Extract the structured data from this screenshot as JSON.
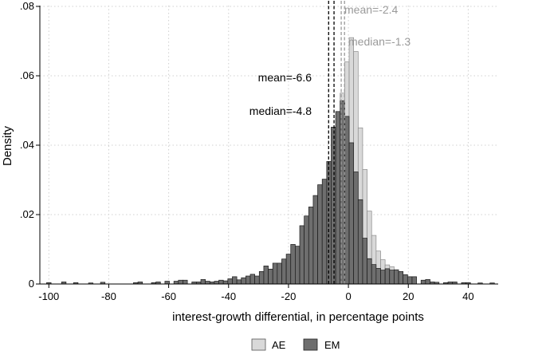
{
  "chart_data": {
    "type": "bar",
    "xlabel": "interest-growth differential, in percentage points",
    "ylabel": "Density",
    "xlim": [
      -103,
      50
    ],
    "ylim": [
      0,
      0.08
    ],
    "x_ticks": [
      {
        "value": -100,
        "label": "-100"
      },
      {
        "value": -80,
        "label": "-80"
      },
      {
        "value": -60,
        "label": "-60"
      },
      {
        "value": -40,
        "label": "-40"
      },
      {
        "value": -20,
        "label": "-20"
      },
      {
        "value": 0,
        "label": "0"
      },
      {
        "value": 20,
        "label": "20"
      },
      {
        "value": 40,
        "label": "40"
      }
    ],
    "y_ticks": [
      {
        "value": 0,
        "label": "0"
      },
      {
        "value": 0.02,
        "label": ".02"
      },
      {
        "value": 0.04,
        "label": ".04"
      },
      {
        "value": 0.06,
        "label": ".06"
      },
      {
        "value": 0.08,
        "label": ".08"
      }
    ],
    "grid": true,
    "legend_position": "bottom",
    "bin_width": 1.5,
    "series": [
      {
        "name": "AE",
        "color": "#d9d9d9",
        "bins": [
          {
            "x": -8,
            "y": 0.003
          },
          {
            "x": -6.5,
            "y": 0.012
          },
          {
            "x": -5,
            "y": 0.025
          },
          {
            "x": -3.5,
            "y": 0.041
          },
          {
            "x": -2,
            "y": 0.055
          },
          {
            "x": -0.5,
            "y": 0.064
          },
          {
            "x": 1,
            "y": 0.071
          },
          {
            "x": 2.5,
            "y": 0.067
          },
          {
            "x": 4,
            "y": 0.045
          },
          {
            "x": 5.5,
            "y": 0.033
          },
          {
            "x": 7,
            "y": 0.021
          },
          {
            "x": 8.5,
            "y": 0.014
          },
          {
            "x": 10,
            "y": 0.0095
          },
          {
            "x": 11.5,
            "y": 0.007
          },
          {
            "x": 13,
            "y": 0.0055
          },
          {
            "x": 14.5,
            "y": 0.005
          }
        ]
      },
      {
        "name": "EM",
        "color": "#6e6e6e",
        "bins": [
          {
            "x": -100,
            "y": 0.0004
          },
          {
            "x": -95,
            "y": 0.0006
          },
          {
            "x": -91,
            "y": 0.0004
          },
          {
            "x": -86,
            "y": 0.0003
          },
          {
            "x": -82,
            "y": 0.0005
          },
          {
            "x": -71,
            "y": 0.0004
          },
          {
            "x": -69.5,
            "y": 0.0006
          },
          {
            "x": -65,
            "y": 0.0004
          },
          {
            "x": -63.5,
            "y": 0.0006
          },
          {
            "x": -60.5,
            "y": 0.0008
          },
          {
            "x": -57.5,
            "y": 0.0008
          },
          {
            "x": -56,
            "y": 0.0011
          },
          {
            "x": -54.5,
            "y": 0.0011
          },
          {
            "x": -51.5,
            "y": 0.0006
          },
          {
            "x": -50,
            "y": 0.0006
          },
          {
            "x": -48.5,
            "y": 0.0013
          },
          {
            "x": -47,
            "y": 0.0008
          },
          {
            "x": -45.5,
            "y": 0.0006
          },
          {
            "x": -44,
            "y": 0.0008
          },
          {
            "x": -42.5,
            "y": 0.0011
          },
          {
            "x": -41,
            "y": 0.0009
          },
          {
            "x": -39.5,
            "y": 0.0015
          },
          {
            "x": -38,
            "y": 0.0021
          },
          {
            "x": -36.5,
            "y": 0.0012
          },
          {
            "x": -35,
            "y": 0.0018
          },
          {
            "x": -33.5,
            "y": 0.0023
          },
          {
            "x": -32,
            "y": 0.0028
          },
          {
            "x": -30.5,
            "y": 0.0023
          },
          {
            "x": -29,
            "y": 0.0036
          },
          {
            "x": -27.5,
            "y": 0.0052
          },
          {
            "x": -26,
            "y": 0.0043
          },
          {
            "x": -24.5,
            "y": 0.006
          },
          {
            "x": -23,
            "y": 0.006
          },
          {
            "x": -21.5,
            "y": 0.0072
          },
          {
            "x": -20,
            "y": 0.0086
          },
          {
            "x": -18.5,
            "y": 0.0114
          },
          {
            "x": -17,
            "y": 0.0109
          },
          {
            "x": -15.5,
            "y": 0.0168
          },
          {
            "x": -14,
            "y": 0.0196
          },
          {
            "x": -12.5,
            "y": 0.0222
          },
          {
            "x": -11,
            "y": 0.0255
          },
          {
            "x": -9.5,
            "y": 0.0286
          },
          {
            "x": -8,
            "y": 0.0302
          },
          {
            "x": -6.5,
            "y": 0.0353
          },
          {
            "x": -5,
            "y": 0.0452
          },
          {
            "x": -3.5,
            "y": 0.0497
          },
          {
            "x": -2,
            "y": 0.0528
          },
          {
            "x": -0.5,
            "y": 0.0483
          },
          {
            "x": 1,
            "y": 0.0407
          },
          {
            "x": 2.5,
            "y": 0.0323
          },
          {
            "x": 4,
            "y": 0.0243
          },
          {
            "x": 5.5,
            "y": 0.0132
          },
          {
            "x": 7,
            "y": 0.0073
          },
          {
            "x": 8.5,
            "y": 0.0056
          },
          {
            "x": 10,
            "y": 0.0045
          },
          {
            "x": 11.5,
            "y": 0.004
          },
          {
            "x": 13,
            "y": 0.0044
          },
          {
            "x": 14.5,
            "y": 0.004
          },
          {
            "x": 16,
            "y": 0.0041
          },
          {
            "x": 17.5,
            "y": 0.0036
          },
          {
            "x": 19,
            "y": 0.0027
          },
          {
            "x": 20.5,
            "y": 0.0021
          },
          {
            "x": 22,
            "y": 0.0021
          },
          {
            "x": 25,
            "y": 0.0011
          },
          {
            "x": 26.5,
            "y": 0.0013
          },
          {
            "x": 28,
            "y": 0.0006
          },
          {
            "x": 29.5,
            "y": 0.0005
          },
          {
            "x": 32.5,
            "y": 0.0004
          },
          {
            "x": 34,
            "y": 0.0006
          },
          {
            "x": 35.5,
            "y": 0.0006
          },
          {
            "x": 38.5,
            "y": 0.0004
          },
          {
            "x": 40,
            "y": 0.0004
          },
          {
            "x": 44,
            "y": 0.0003
          },
          {
            "x": 48,
            "y": 0.0003
          }
        ]
      }
    ],
    "reference_lines": [
      {
        "group": "EM",
        "x": -6.6,
        "label": "mean=-6.6",
        "color": "#000000"
      },
      {
        "group": "EM",
        "x": -4.8,
        "label": "median=-4.8",
        "color": "#000000"
      },
      {
        "group": "AE",
        "x": -2.4,
        "label": "mean=-2.4",
        "color": "#9a9a9a"
      },
      {
        "group": "AE",
        "x": -1.3,
        "label": "median=-1.3",
        "color": "#9a9a9a"
      }
    ]
  }
}
